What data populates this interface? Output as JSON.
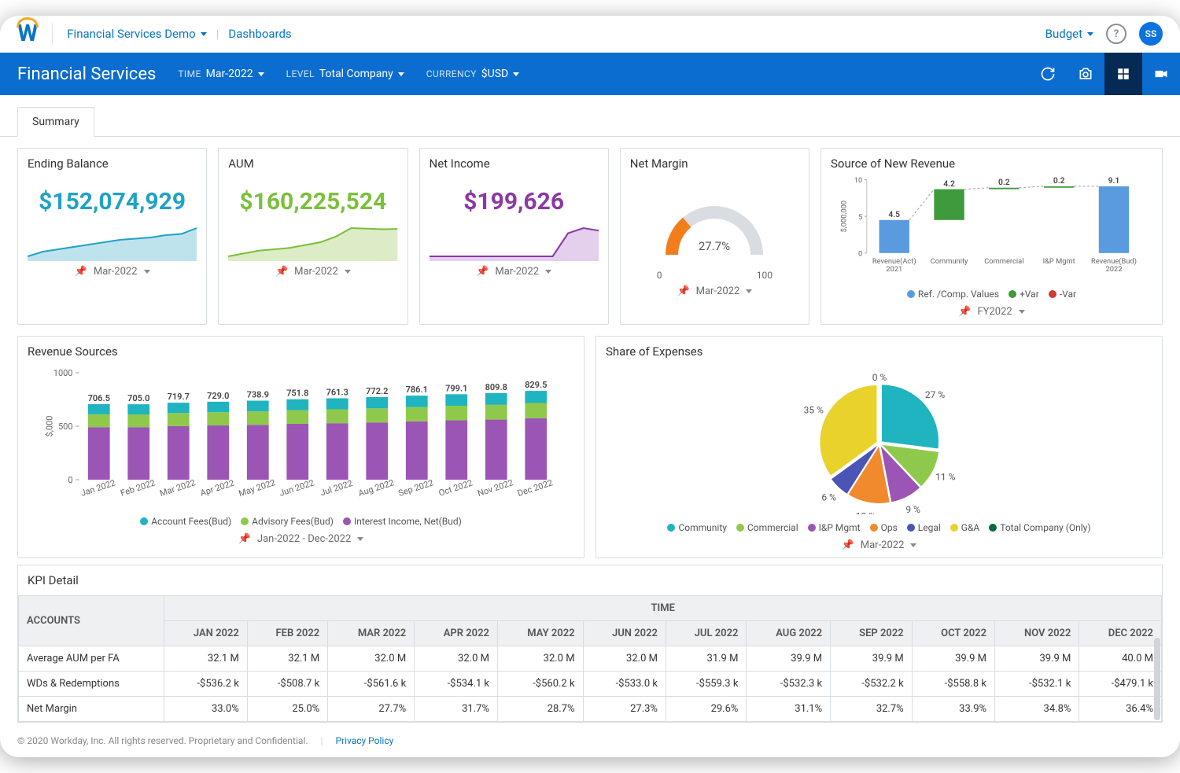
{
  "breadcrumb": {
    "app": "Financial Services Demo",
    "page": "Dashboards"
  },
  "topbar": {
    "budget_label": "Budget",
    "avatar_initials": "SS"
  },
  "bluebar": {
    "title": "Financial Services",
    "filters": {
      "time": {
        "label": "TIME",
        "value": "Mar-2022"
      },
      "level": {
        "label": "LEVEL",
        "value": "Total Company"
      },
      "currency": {
        "label": "CURRENCY",
        "value": "$USD"
      }
    }
  },
  "tab": {
    "summary": "Summary"
  },
  "kpi_cards": {
    "ending_balance": {
      "title": "Ending Balance",
      "value": "$152,074,929",
      "color": "#1ea3c4",
      "spark": {
        "fill": "#bfe3ec",
        "stroke": "#1ea3c4",
        "points": [
          12,
          14,
          15,
          16,
          17,
          18,
          19,
          19.5,
          20,
          21,
          21.5,
          24
        ]
      },
      "period": "Mar-2022"
    },
    "aum": {
      "title": "AUM",
      "value": "$160,225,524",
      "color": "#7bbf3a",
      "spark": {
        "fill": "#dcecc6",
        "stroke": "#7bbf3a",
        "points": [
          12,
          13,
          14,
          14.5,
          15,
          16,
          17,
          19,
          22,
          21.8,
          21.6,
          21.7
        ]
      },
      "period": "Mar-2022"
    },
    "net_income": {
      "title": "Net Income",
      "value": "$199,626",
      "color": "#8a39a5",
      "spark": {
        "fill": "#e4cfec",
        "stroke": "#8a39a5",
        "points": [
          3,
          3,
          3,
          3,
          3,
          3,
          3,
          3,
          3,
          12,
          14,
          13
        ]
      },
      "period": "Mar-2022"
    }
  },
  "net_margin": {
    "title": "Net Margin",
    "value_pct": 27.7,
    "value_label": "27.7%",
    "scale_min": "0",
    "scale_max": "100",
    "arc_color": "#f27d1a",
    "track_color": "#d9dde1",
    "period": "Mar-2022"
  },
  "new_revenue": {
    "title": "Source of New Revenue",
    "y_axis_label": "$,000,000",
    "ymax": 10,
    "yticks": [
      0,
      5,
      10
    ],
    "bars": [
      {
        "label": "Revenue(Act)\n2021",
        "value": 4.5,
        "disp": "4.5",
        "kind": "ref",
        "color": "#5a9be0"
      },
      {
        "label": "Community",
        "value": 4.2,
        "disp": "4.2",
        "kind": "pos",
        "color": "#3f9a3c",
        "base": 4.5
      },
      {
        "label": "Commercial",
        "value": 0.2,
        "disp": "0.2",
        "kind": "pos",
        "color": "#3f9a3c",
        "base": 8.7
      },
      {
        "label": "I&P Mgmt",
        "value": 0.2,
        "disp": "0.2",
        "kind": "pos",
        "color": "#3f9a3c",
        "base": 8.9
      },
      {
        "label": "Revenue(Bud)\n2022",
        "value": 9.1,
        "disp": "9.1",
        "kind": "ref",
        "color": "#5a9be0"
      }
    ],
    "legend": [
      {
        "label": "Ref. /Comp. Values",
        "color": "#5a9be0"
      },
      {
        "label": "+Var",
        "color": "#3f9a3c"
      },
      {
        "label": "-Var",
        "color": "#d13a2e"
      }
    ],
    "period": "FY2022"
  },
  "revenue_sources": {
    "title": "Revenue Sources",
    "y_axis_label": "$,000",
    "ymax": 1000,
    "yticks": [
      0,
      500,
      1000
    ],
    "months": [
      "Jan 2022",
      "Feb 2022",
      "Mar 2022",
      "Apr 2022",
      "May 2022",
      "Jun 2022",
      "Jul 2022",
      "Aug 2022",
      "Sep 2022",
      "Oct 2022",
      "Nov 2022",
      "Dec 2022"
    ],
    "totals": [
      "706.5",
      "705.0",
      "719.7",
      "729.0",
      "738.9",
      "751.8",
      "761.3",
      "772.2",
      "786.1",
      "799.1",
      "809.8",
      "829.5"
    ],
    "series": {
      "account_fees": {
        "label": "Account Fees(Bud)",
        "color": "#1fb4bf",
        "values": [
          95,
          95,
          97,
          98,
          100,
          102,
          103,
          105,
          107,
          108,
          110,
          113
        ]
      },
      "advisory_fees": {
        "label": "Advisory Fees(Bud)",
        "color": "#8fc94b",
        "values": [
          120,
          119,
          122,
          124,
          126,
          128,
          130,
          132,
          134,
          136,
          138,
          142
        ]
      },
      "interest_income": {
        "label": "Interest Income, Net(Bud)",
        "color": "#9b55b5",
        "values": [
          491,
          491,
          501,
          507,
          513,
          522,
          528,
          535,
          545,
          555,
          562,
          575
        ]
      }
    },
    "period": "Jan-2022 - Dec-2022"
  },
  "share_expenses": {
    "title": "Share of Expenses",
    "slices": [
      {
        "label": "Community",
        "pct": 27,
        "color": "#1fb4bf"
      },
      {
        "label": "Commercial",
        "pct": 11,
        "color": "#8fc94b"
      },
      {
        "label": "I&P Mgmt",
        "pct": 9,
        "color": "#9b55b5"
      },
      {
        "label": "Ops",
        "pct": 12,
        "color": "#f08a2c"
      },
      {
        "label": "Legal",
        "pct": 6,
        "color": "#4a55b5"
      },
      {
        "label": "G&A",
        "pct": 35,
        "color": "#e8d22b"
      },
      {
        "label": "Total Company (Only)",
        "pct": 0,
        "color": "#0a6a3c"
      }
    ],
    "period": "Mar-2022"
  },
  "kpi_detail": {
    "title": "KPI Detail",
    "group_headers": {
      "accounts": "ACCOUNTS",
      "time": "TIME"
    },
    "columns": [
      "JAN 2022",
      "FEB 2022",
      "MAR 2022",
      "APR 2022",
      "MAY 2022",
      "JUN 2022",
      "JUL 2022",
      "AUG 2022",
      "SEP 2022",
      "OCT 2022",
      "NOV 2022",
      "DEC 2022"
    ],
    "rows": [
      {
        "account": "Average AUM per FA",
        "cells": [
          "32.1 M",
          "32.1 M",
          "32.0 M",
          "32.0 M",
          "32.0 M",
          "32.0 M",
          "31.9 M",
          "39.9 M",
          "39.9 M",
          "39.9 M",
          "39.9 M",
          "40.0 M"
        ]
      },
      {
        "account": "WDs & Redemptions",
        "cells": [
          "-$536.2 k",
          "-$508.7 k",
          "-$561.6 k",
          "-$534.1 k",
          "-$560.2 k",
          "-$533.0 k",
          "-$559.3 k",
          "-$532.3 k",
          "-$532.2 k",
          "-$558.8 k",
          "-$532.1 k",
          "-$479.1 k"
        ]
      },
      {
        "account": "Net Margin",
        "cells": [
          "33.0%",
          "25.0%",
          "27.7%",
          "31.7%",
          "28.7%",
          "27.3%",
          "29.6%",
          "31.1%",
          "32.7%",
          "33.9%",
          "34.8%",
          "36.4%"
        ]
      }
    ]
  },
  "footer": {
    "copyright": "© 2020 Workday, Inc. All rights reserved. Proprietary and Confidential.",
    "privacy": "Privacy Policy"
  }
}
